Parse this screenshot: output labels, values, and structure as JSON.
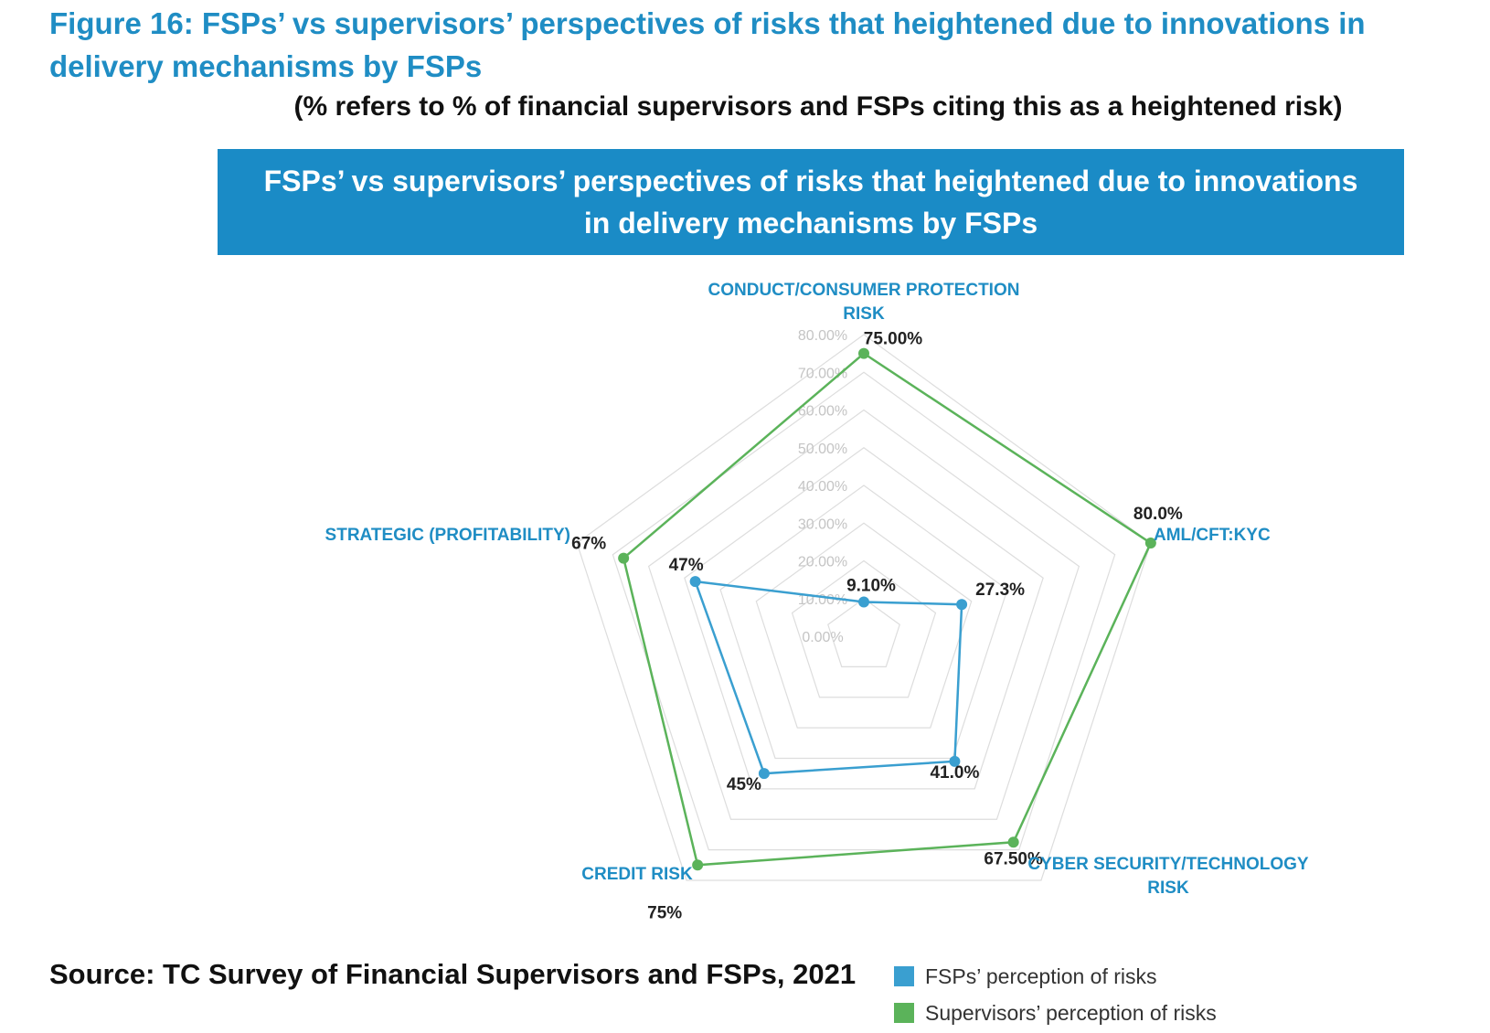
{
  "figure": {
    "title": "Figure 16: FSPs’ vs supervisors’ perspectives of risks that heightened due to innovations in delivery mechanisms by FSPs",
    "subtitle": "(% refers to % of financial supervisors and FSPs citing this as a heightened risk)",
    "banner": "FSPs’ vs supervisors’ perspectives of risks that heightened due to innovations in delivery mechanisms by FSPs"
  },
  "source": "Source: TC Survey of Financial Supervisors and FSPs, 2021",
  "colors": {
    "fsp": "#3a9fd0",
    "supervisor": "#5bb35a",
    "axis_label": "#1f8dc4",
    "grid": "#dddddd",
    "tick": "#c4c4c4",
    "value_label": "#222222"
  },
  "chart_data": {
    "type": "radar",
    "title": "FSPs’ vs supervisors’ perspectives of risks that heightened due to innovations in delivery mechanisms by FSPs",
    "axes": [
      "CONDUCT/CONSUMER PROTECTION RISK",
      "AML/CFT:KYC",
      "CYBER SECURITY/TECHNOLOGY RISK",
      "CREDIT RISK",
      "STRATEGIC (PROFITABILITY)"
    ],
    "scale": {
      "min": 0,
      "max": 80,
      "step": 10,
      "unit": "%"
    },
    "tick_labels": [
      "0.00%",
      "10.00%",
      "20.00%",
      "30.00%",
      "40.00%",
      "50.00%",
      "60.00%",
      "70.00%",
      "80.00%"
    ],
    "grid": true,
    "legend_position": "bottom-right",
    "series": [
      {
        "name": "FSPs’ perception of risks",
        "color": "#3a9fd0",
        "values": [
          9.1,
          27.3,
          41.0,
          45,
          47
        ],
        "labels": [
          "9.10%",
          "27.3%",
          "41.0%",
          "45%",
          "47%"
        ]
      },
      {
        "name": "Supervisors’ perception of risks",
        "color": "#5bb35a",
        "values": [
          75,
          80,
          67.5,
          75,
          67
        ],
        "labels": [
          "75.00%",
          "80.0%",
          "67.50%",
          "75%",
          "67%"
        ]
      }
    ]
  }
}
